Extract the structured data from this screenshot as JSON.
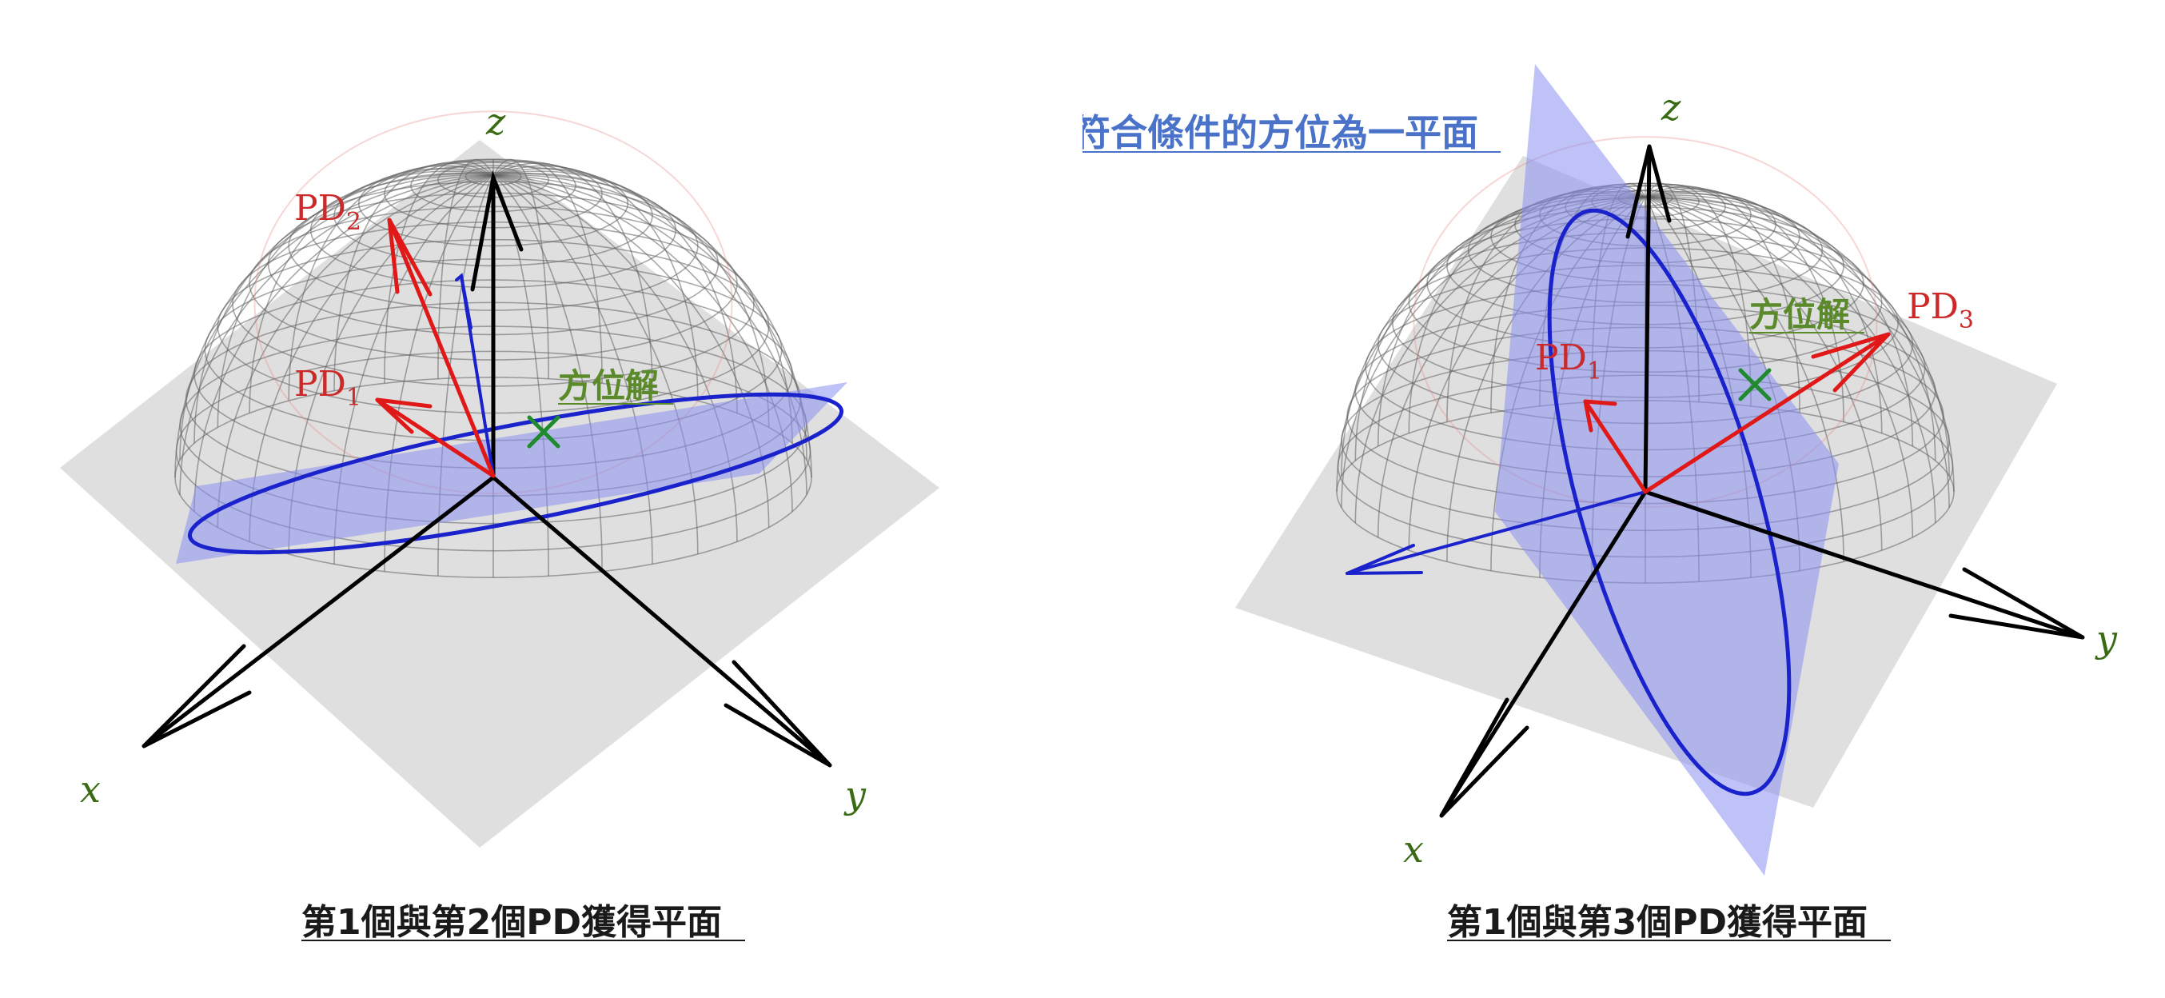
{
  "colors": {
    "axis": "#000000",
    "pd_vector": "#e01818",
    "pd_label": "#cc2a2a",
    "normal_vector": "#1a22cc",
    "plane": "#8a90f0",
    "circle": "#1a22cc",
    "solution_mark": "#1f8a2e",
    "solution_label": "#5a8a2a",
    "axis_label": "#3a6a14",
    "sphere_grid": "#606060",
    "ground": "#c8c8c8",
    "annotation": "#4a72c8",
    "caption": "#1a1a1a"
  },
  "left_panel": {
    "axis_x": "x",
    "axis_y": "y",
    "axis_z": "z",
    "pd_a": {
      "base": "PD",
      "sub": "1"
    },
    "pd_b": {
      "base": "PD",
      "sub": "2"
    },
    "solution_label": "方位解",
    "caption": "第1個與第2個PD獲得平面"
  },
  "right_panel": {
    "axis_x": "x",
    "axis_y": "y",
    "axis_z": "z",
    "pd_a": {
      "base": "PD",
      "sub": "1"
    },
    "pd_b": {
      "base": "PD",
      "sub": "3"
    },
    "solution_label": "方位解",
    "annotation": "符合條件的方位為一平面",
    "caption": "第1個與第3個PD獲得平面"
  }
}
